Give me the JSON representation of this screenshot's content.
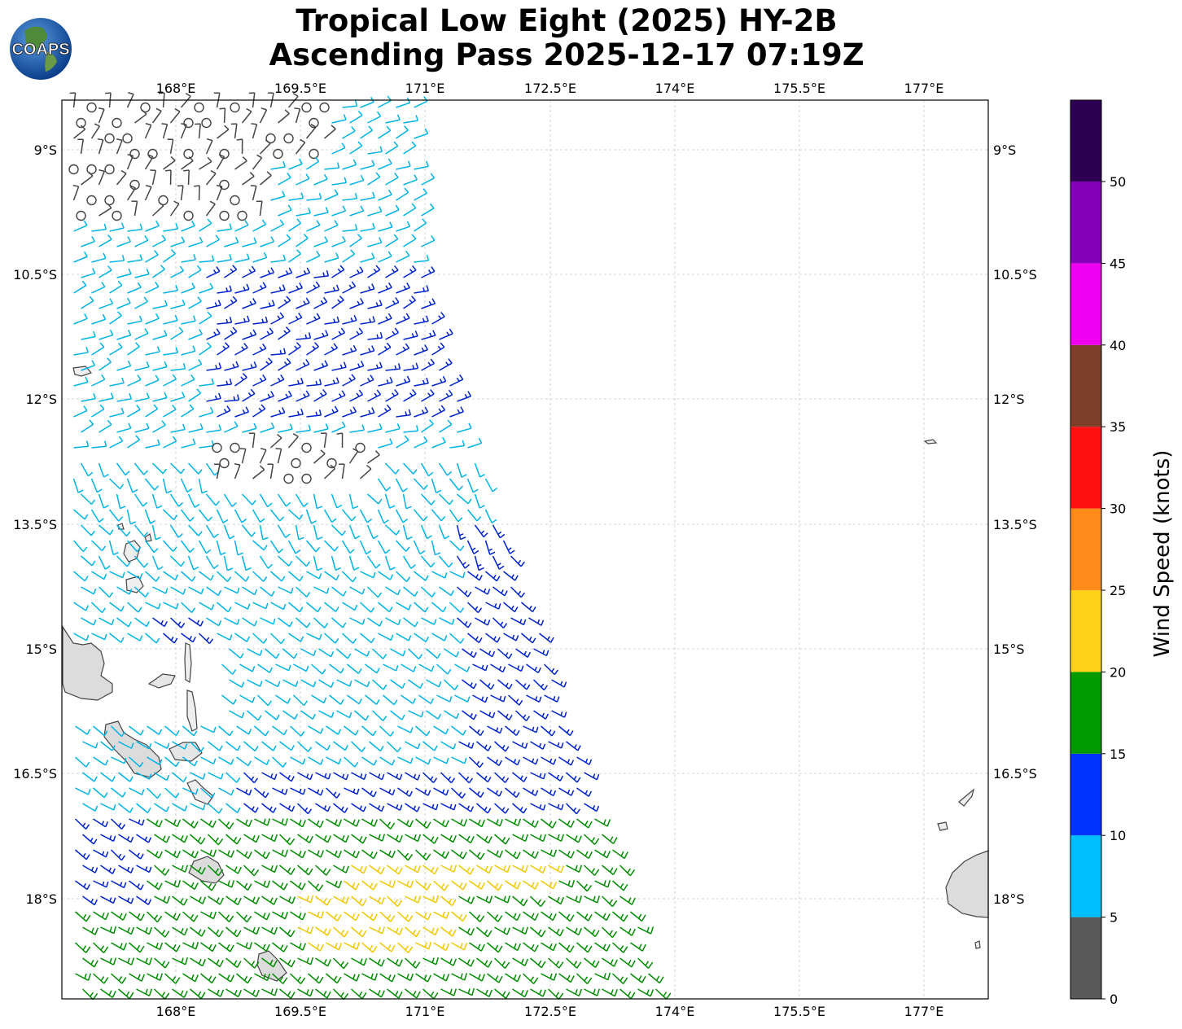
{
  "header": {
    "title_line1": "Tropical Low Eight (2025) HY-2B",
    "title_line2": "Ascending Pass 2025-12-17 07:19Z",
    "logo_text": "COAPS"
  },
  "axes": {
    "lon_labels": [
      "168°E",
      "169.5°E",
      "171°E",
      "172.5°E",
      "174°E",
      "175.5°E",
      "177°E"
    ],
    "lat_labels": [
      "9°S",
      "10.5°S",
      "12°S",
      "13.5°S",
      "15°S",
      "16.5°S",
      "18°S"
    ]
  },
  "colorbar": {
    "label": "Wind Speed (knots)",
    "ticks": [
      "0",
      "5",
      "10",
      "15",
      "20",
      "25",
      "30",
      "35",
      "40",
      "45",
      "50"
    ],
    "colors": [
      "#595959",
      "#00bfff",
      "#0033ff",
      "#009900",
      "#ffd11a",
      "#ff8c1a",
      "#ff1111",
      "#7d3f2a",
      "#f000f0",
      "#8400b8",
      "#2e0054"
    ]
  },
  "wind_colors": {
    "calm": "#444444",
    "light": "#00b3e6",
    "moderate": "#0022cc",
    "fresh": "#008c00",
    "strong": "#f0c800"
  }
}
